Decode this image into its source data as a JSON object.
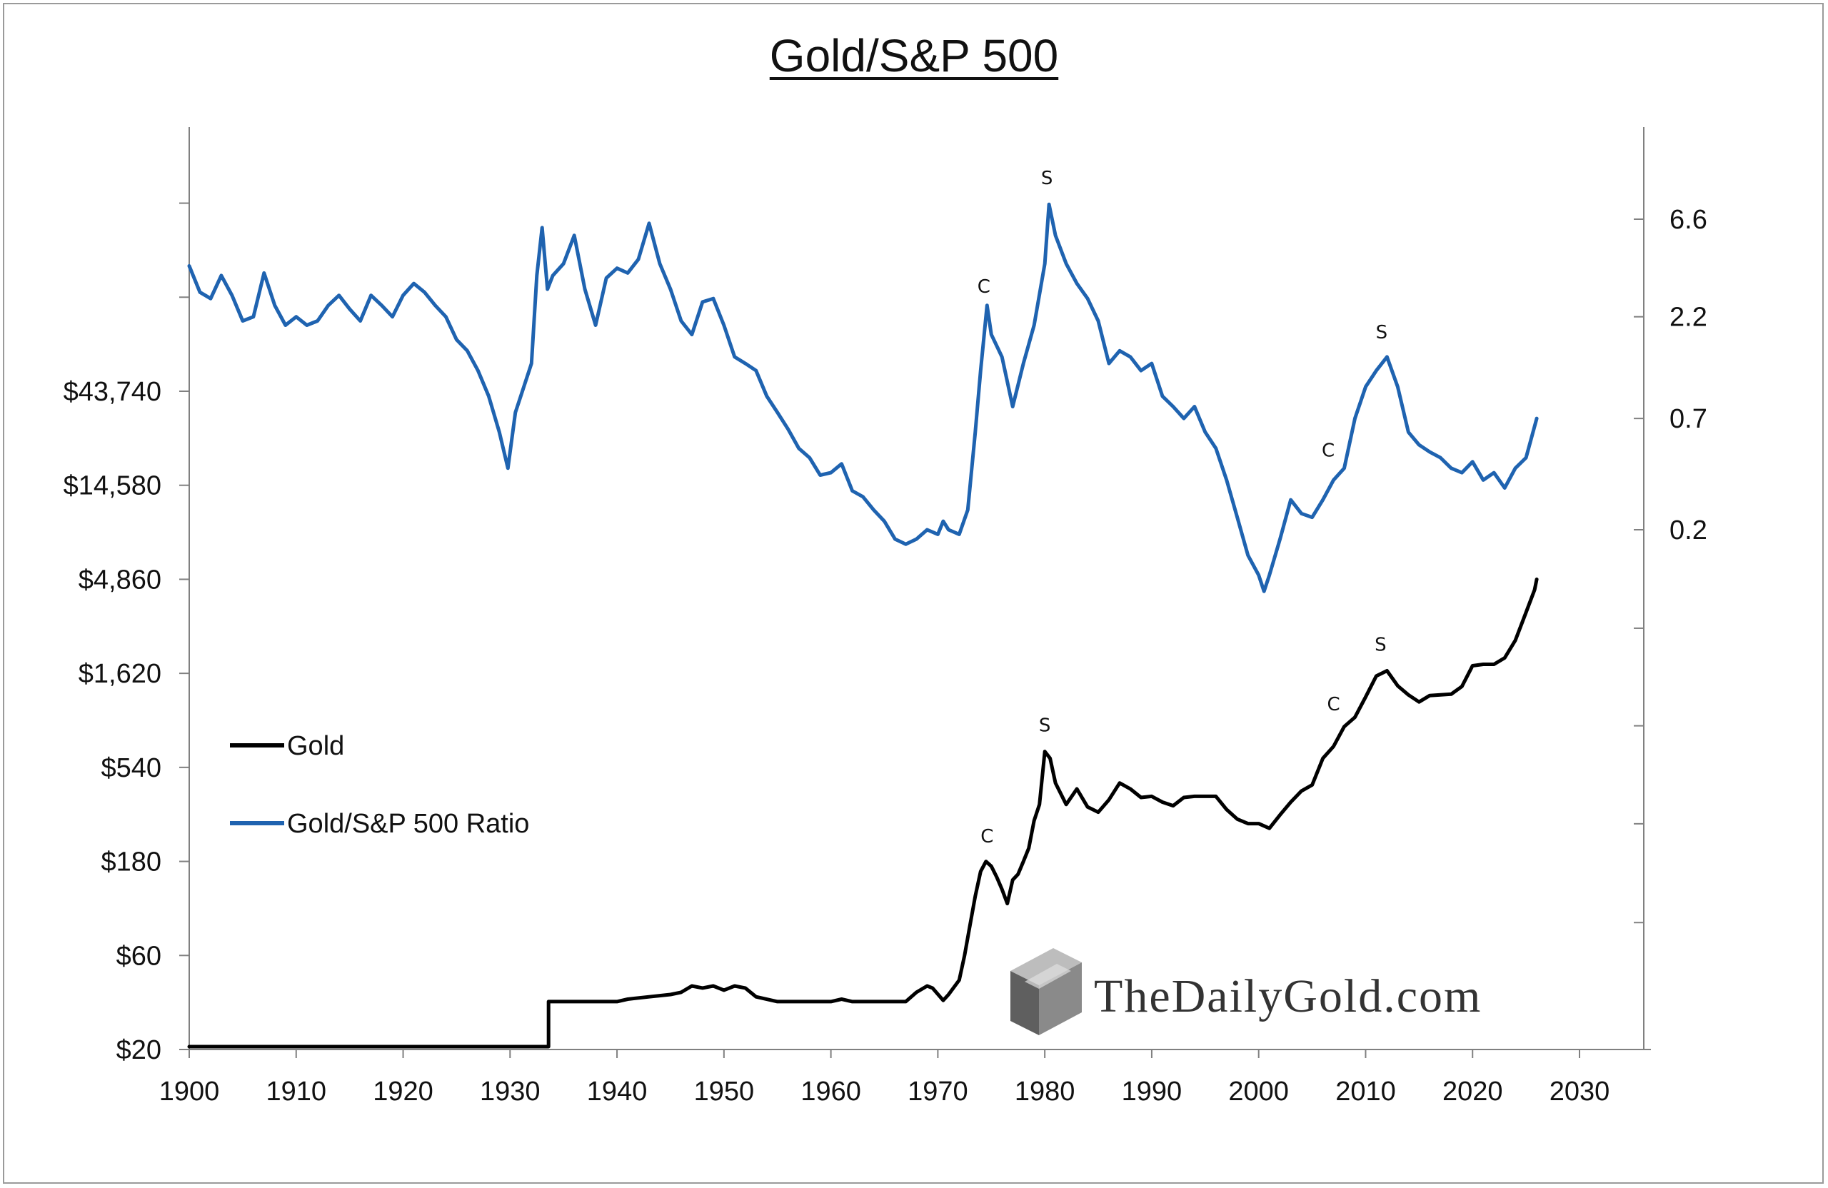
{
  "chart_data": {
    "type": "line",
    "title": "Gold/S&P 500",
    "watermark": "TheDailyGold.com",
    "x_axis": {
      "range": [
        1900,
        2030
      ],
      "ticks": [
        1900,
        1910,
        1920,
        1930,
        1940,
        1950,
        1960,
        1970,
        1980,
        1990,
        2000,
        2010,
        2020,
        2030
      ]
    },
    "y_left": {
      "scale": "log",
      "range": [
        20,
        43740
      ],
      "ticks": [
        {
          "value": 20,
          "label": "$20"
        },
        {
          "value": 60,
          "label": "$60"
        },
        {
          "value": 180,
          "label": "$180"
        },
        {
          "value": 540,
          "label": "$540"
        },
        {
          "value": 1620,
          "label": "$1,620"
        },
        {
          "value": 4860,
          "label": "$4,860"
        },
        {
          "value": 14580,
          "label": "$14,580"
        },
        {
          "value": 43740,
          "label": "$43,740"
        }
      ]
    },
    "y_right": {
      "scale": "log",
      "ticks": [
        {
          "value": 0.2,
          "label": "0.2"
        },
        {
          "value": 0.7,
          "label": "0.7"
        },
        {
          "value": 2.2,
          "label": "2.2"
        },
        {
          "value": 6.6,
          "label": "6.6"
        }
      ]
    },
    "legend_position": "left-middle",
    "series": [
      {
        "name": "Gold",
        "color": "#000000",
        "axis": "left",
        "points": [
          [
            1900,
            20.67
          ],
          [
            1933.3,
            20.67
          ],
          [
            1933.6,
            35
          ],
          [
            1940,
            35
          ],
          [
            1941,
            36
          ],
          [
            1943,
            37
          ],
          [
            1945,
            38
          ],
          [
            1946,
            39
          ],
          [
            1947,
            42
          ],
          [
            1948,
            41
          ],
          [
            1949,
            42
          ],
          [
            1950,
            40
          ],
          [
            1951,
            42
          ],
          [
            1952,
            41
          ],
          [
            1953,
            37
          ],
          [
            1955,
            35
          ],
          [
            1960,
            35
          ],
          [
            1961,
            36
          ],
          [
            1962,
            35
          ],
          [
            1967,
            35
          ],
          [
            1968,
            39
          ],
          [
            1969,
            42
          ],
          [
            1969.5,
            41
          ],
          [
            1970.5,
            35.5
          ],
          [
            1971,
            38
          ],
          [
            1972,
            45
          ],
          [
            1972.5,
            60
          ],
          [
            1973,
            85
          ],
          [
            1973.5,
            120
          ],
          [
            1974,
            160
          ],
          [
            1974.5,
            180
          ],
          [
            1975,
            170
          ],
          [
            1975.5,
            150
          ],
          [
            1976,
            130
          ],
          [
            1976.5,
            110
          ],
          [
            1977,
            145
          ],
          [
            1977.5,
            155
          ],
          [
            1978,
            180
          ],
          [
            1978.5,
            210
          ],
          [
            1979,
            290
          ],
          [
            1979.5,
            350
          ],
          [
            1980,
            650
          ],
          [
            1980.5,
            600
          ],
          [
            1981,
            450
          ],
          [
            1982,
            350
          ],
          [
            1983,
            420
          ],
          [
            1984,
            340
          ],
          [
            1985,
            320
          ],
          [
            1986,
            370
          ],
          [
            1987,
            450
          ],
          [
            1988,
            420
          ],
          [
            1989,
            380
          ],
          [
            1990,
            385
          ],
          [
            1991,
            360
          ],
          [
            1992,
            345
          ],
          [
            1993,
            380
          ],
          [
            1994,
            385
          ],
          [
            1995,
            385
          ],
          [
            1996,
            385
          ],
          [
            1997,
            330
          ],
          [
            1998,
            295
          ],
          [
            1999,
            280
          ],
          [
            2000,
            280
          ],
          [
            2001,
            265
          ],
          [
            2002,
            310
          ],
          [
            2003,
            360
          ],
          [
            2004,
            410
          ],
          [
            2005,
            440
          ],
          [
            2006,
            600
          ],
          [
            2007,
            690
          ],
          [
            2008,
            870
          ],
          [
            2009,
            970
          ],
          [
            2010,
            1230
          ],
          [
            2011,
            1570
          ],
          [
            2012,
            1670
          ],
          [
            2013,
            1400
          ],
          [
            2014,
            1260
          ],
          [
            2015,
            1160
          ],
          [
            2016,
            1250
          ],
          [
            2017,
            1260
          ],
          [
            2018,
            1270
          ],
          [
            2019,
            1390
          ],
          [
            2020,
            1770
          ],
          [
            2021,
            1800
          ],
          [
            2022,
            1800
          ],
          [
            2023,
            1940
          ],
          [
            2024,
            2380
          ],
          [
            2025,
            3300
          ],
          [
            2025.8,
            4300
          ],
          [
            2026,
            4860
          ]
        ]
      },
      {
        "name": "Gold/S&P 500 Ratio",
        "color": "#1f63b0",
        "axis": "right",
        "points": [
          [
            1900,
            3.9
          ],
          [
            1901,
            2.9
          ],
          [
            1902,
            2.7
          ],
          [
            1903,
            3.5
          ],
          [
            1904,
            2.8
          ],
          [
            1905,
            2.1
          ],
          [
            1906,
            2.2
          ],
          [
            1907,
            3.6
          ],
          [
            1908,
            2.5
          ],
          [
            1909,
            2.0
          ],
          [
            1910,
            2.2
          ],
          [
            1911,
            2.0
          ],
          [
            1912,
            2.1
          ],
          [
            1913,
            2.5
          ],
          [
            1914,
            2.8
          ],
          [
            1915,
            2.4
          ],
          [
            1916,
            2.1
          ],
          [
            1917,
            2.8
          ],
          [
            1918,
            2.5
          ],
          [
            1919,
            2.2
          ],
          [
            1920,
            2.8
          ],
          [
            1921,
            3.2
          ],
          [
            1922,
            2.9
          ],
          [
            1923,
            2.5
          ],
          [
            1924,
            2.2
          ],
          [
            1925,
            1.7
          ],
          [
            1926,
            1.5
          ],
          [
            1927,
            1.2
          ],
          [
            1928,
            0.9
          ],
          [
            1929,
            0.6
          ],
          [
            1929.8,
            0.4
          ],
          [
            1930.5,
            0.75
          ],
          [
            1931,
            0.9
          ],
          [
            1932,
            1.3
          ],
          [
            1932.5,
            3.5
          ],
          [
            1933,
            6.0
          ],
          [
            1933.5,
            3.0
          ],
          [
            1934,
            3.5
          ],
          [
            1935,
            4.0
          ],
          [
            1936,
            5.5
          ],
          [
            1937,
            3.0
          ],
          [
            1938,
            2.0
          ],
          [
            1939,
            3.4
          ],
          [
            1940,
            3.8
          ],
          [
            1941,
            3.6
          ],
          [
            1942,
            4.2
          ],
          [
            1943,
            6.3
          ],
          [
            1944,
            4.0
          ],
          [
            1945,
            3.0
          ],
          [
            1946,
            2.1
          ],
          [
            1947,
            1.8
          ],
          [
            1948,
            2.6
          ],
          [
            1949,
            2.7
          ],
          [
            1950,
            2.0
          ],
          [
            1951,
            1.4
          ],
          [
            1952,
            1.3
          ],
          [
            1953,
            1.2
          ],
          [
            1954,
            0.9
          ],
          [
            1955,
            0.75
          ],
          [
            1956,
            0.62
          ],
          [
            1957,
            0.5
          ],
          [
            1958,
            0.45
          ],
          [
            1959,
            0.37
          ],
          [
            1960,
            0.38
          ],
          [
            1961,
            0.42
          ],
          [
            1962,
            0.31
          ],
          [
            1963,
            0.29
          ],
          [
            1964,
            0.25
          ],
          [
            1965,
            0.22
          ],
          [
            1966,
            0.18
          ],
          [
            1967,
            0.17
          ],
          [
            1968,
            0.18
          ],
          [
            1969,
            0.2
          ],
          [
            1970,
            0.19
          ],
          [
            1970.5,
            0.22
          ],
          [
            1971,
            0.2
          ],
          [
            1972,
            0.19
          ],
          [
            1972.8,
            0.25
          ],
          [
            1973.5,
            0.6
          ],
          [
            1974,
            1.2
          ],
          [
            1974.6,
            2.5
          ],
          [
            1975,
            1.8
          ],
          [
            1976,
            1.4
          ],
          [
            1977,
            0.8
          ],
          [
            1978,
            1.3
          ],
          [
            1979,
            2.0
          ],
          [
            1980,
            4.0
          ],
          [
            1980.4,
            7.8
          ],
          [
            1981,
            5.5
          ],
          [
            1982,
            4.0
          ],
          [
            1983,
            3.2
          ],
          [
            1984,
            2.7
          ],
          [
            1985,
            2.1
          ],
          [
            1986,
            1.3
          ],
          [
            1987,
            1.5
          ],
          [
            1988,
            1.4
          ],
          [
            1989,
            1.2
          ],
          [
            1990,
            1.3
          ],
          [
            1991,
            0.9
          ],
          [
            1992,
            0.8
          ],
          [
            1993,
            0.7
          ],
          [
            1994,
            0.8
          ],
          [
            1995,
            0.6
          ],
          [
            1996,
            0.5
          ],
          [
            1997,
            0.35
          ],
          [
            1998,
            0.23
          ],
          [
            1999,
            0.15
          ],
          [
            2000,
            0.12
          ],
          [
            2000.5,
            0.1
          ],
          [
            2001,
            0.12
          ],
          [
            2002,
            0.18
          ],
          [
            2003,
            0.28
          ],
          [
            2004,
            0.24
          ],
          [
            2005,
            0.23
          ],
          [
            2006,
            0.28
          ],
          [
            2007,
            0.35
          ],
          [
            2008,
            0.4
          ],
          [
            2009,
            0.7
          ],
          [
            2010,
            1.0
          ],
          [
            2011,
            1.2
          ],
          [
            2012,
            1.4
          ],
          [
            2013,
            1.0
          ],
          [
            2014,
            0.6
          ],
          [
            2015,
            0.52
          ],
          [
            2016,
            0.48
          ],
          [
            2017,
            0.45
          ],
          [
            2018,
            0.4
          ],
          [
            2019,
            0.38
          ],
          [
            2020,
            0.43
          ],
          [
            2021,
            0.35
          ],
          [
            2022,
            0.38
          ],
          [
            2023,
            0.32
          ],
          [
            2024,
            0.4
          ],
          [
            2025,
            0.45
          ],
          [
            2026,
            0.7
          ]
        ]
      }
    ],
    "annotations": [
      {
        "text": "C",
        "series": "Gold/S&P 500 Ratio",
        "x": 1974.3
      },
      {
        "text": "S",
        "series": "Gold/S&P 500 Ratio",
        "x": 1980.2
      },
      {
        "text": "C",
        "series": "Gold/S&P 500 Ratio",
        "x": 2006.5
      },
      {
        "text": "S",
        "series": "Gold/S&P 500 Ratio",
        "x": 2011.5
      },
      {
        "text": "C",
        "series": "Gold",
        "x": 1974.6
      },
      {
        "text": "S",
        "series": "Gold",
        "x": 1980
      },
      {
        "text": "C",
        "series": "Gold",
        "x": 2007
      },
      {
        "text": "S",
        "series": "Gold",
        "x": 2011.4
      }
    ]
  }
}
